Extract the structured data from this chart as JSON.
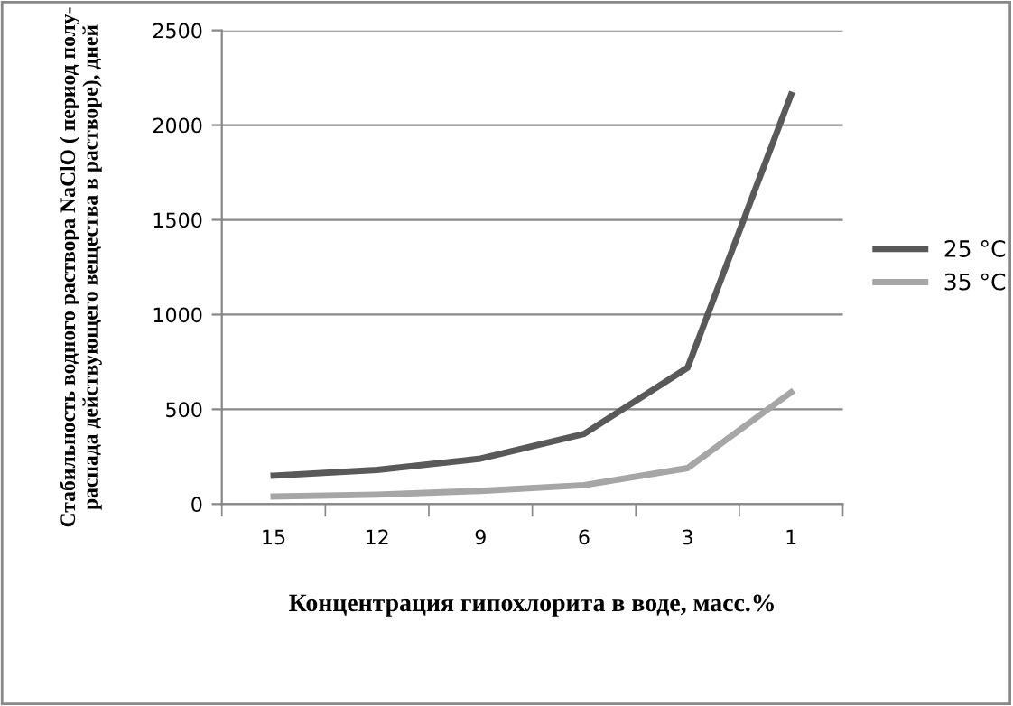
{
  "chart_data": {
    "type": "line",
    "xlabel": "Концентрация гипохлорита в воде, масс.%",
    "ylabel": "Стабильность водного раствора NaClO ( период полу-\nраспада действующего вещества в растворе), дней",
    "categories": [
      "15",
      "12",
      "9",
      "6",
      "3",
      "1"
    ],
    "series": [
      {
        "name": "25 °C",
        "color": "#595959",
        "values": [
          150,
          180,
          240,
          370,
          720,
          2160
        ]
      },
      {
        "name": "35 °C",
        "color": "#a6a6a6",
        "values": [
          40,
          50,
          70,
          100,
          190,
          590
        ]
      }
    ],
    "ylim": [
      0,
      2500
    ],
    "yticks": [
      0,
      500,
      1000,
      1500,
      2000,
      2500
    ],
    "grid": "y",
    "legend": "right",
    "marker": "none",
    "line_style": "solid"
  }
}
